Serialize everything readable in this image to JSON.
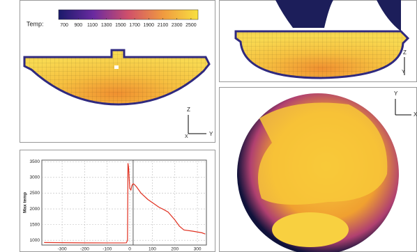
{
  "colorbar": {
    "label": "Temp:",
    "ticks": [
      700,
      900,
      1100,
      1300,
      1500,
      1700,
      1900,
      2100,
      2300,
      2500
    ],
    "lim": [
      620,
      2600
    ]
  },
  "views": {
    "section_triad": [
      "Z",
      "Y",
      "X"
    ],
    "top_triad": [
      "Z",
      "Y"
    ],
    "circle_triad": [
      "Y",
      "X"
    ]
  },
  "chart_data": {
    "type": "line",
    "ylabel": "Max temp",
    "x": [
      -380,
      -300,
      -200,
      -100,
      -30,
      -15,
      -10,
      -8,
      -5,
      0,
      5,
      10,
      15,
      20,
      30,
      50,
      80,
      100,
      130,
      150,
      170,
      200,
      220,
      240,
      280,
      320,
      335
    ],
    "values": [
      930,
      925,
      920,
      918,
      918,
      920,
      1000,
      3450,
      3300,
      2650,
      2600,
      2750,
      2800,
      2780,
      2700,
      2500,
      2300,
      2200,
      2050,
      1980,
      1900,
      1650,
      1450,
      1330,
      1290,
      1240,
      1200
    ],
    "color": "#e03020",
    "cursor_x": 15,
    "xlim": [
      -390,
      340
    ],
    "ylim": [
      850,
      3550
    ],
    "xticks": [
      -300,
      -200,
      -100,
      0,
      100,
      200,
      300
    ],
    "yticks": [
      1000,
      1500,
      2000,
      2500,
      3000,
      3500
    ],
    "grid": true
  }
}
